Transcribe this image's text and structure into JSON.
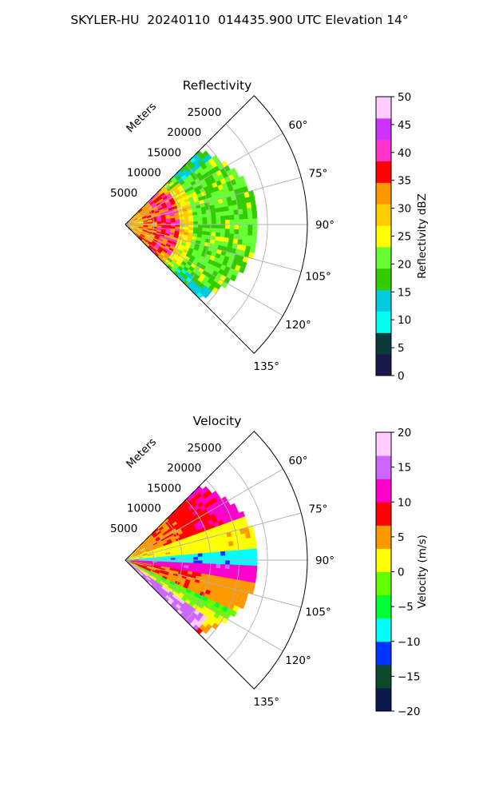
{
  "figure_title": "SKYLER-HU  20240110  014435.900 UTC Elevation 14°",
  "chart_data": [
    {
      "type": "heatmap",
      "title": "Reflectivity",
      "radial_axis_label": "Meters",
      "radial_ticks": [
        5000,
        10000,
        15000,
        20000,
        25000
      ],
      "radial_tick_labels": [
        "5000",
        "10000",
        "15000",
        "20000",
        "25000"
      ],
      "azimuth_ticks": [
        60,
        75,
        90,
        105,
        120,
        135
      ],
      "azimuth_tick_labels": [
        "60°",
        "75°",
        "90°",
        "105°",
        "120°",
        "135°"
      ],
      "azimuth_range": [
        45,
        135
      ],
      "radial_range": [
        0,
        32000
      ],
      "data_extent_m": 24000,
      "colorbar": {
        "label": "Reflectivity dBZ",
        "range": [
          0,
          50
        ],
        "ticks": [
          0,
          5,
          10,
          15,
          20,
          25,
          30,
          35,
          40,
          45,
          50
        ],
        "tick_labels": [
          "0",
          "5",
          "10",
          "15",
          "20",
          "25",
          "30",
          "35",
          "40",
          "45",
          "50"
        ],
        "colors": [
          "#1a1a4a",
          "#0a3a3a",
          "#00ffee",
          "#00ccdd",
          "#33cc00",
          "#66ff33",
          "#ffff00",
          "#ffcc00",
          "#ff9900",
          "#ff0000",
          "#ff33cc",
          "#cc33ff",
          "#ffccff"
        ]
      },
      "grid": true
    },
    {
      "type": "heatmap",
      "title": "Velocity",
      "radial_axis_label": "Meters",
      "radial_ticks": [
        5000,
        10000,
        15000,
        20000,
        25000
      ],
      "radial_tick_labels": [
        "5000",
        "10000",
        "15000",
        "20000",
        "25000"
      ],
      "azimuth_ticks": [
        60,
        75,
        90,
        105,
        120,
        135
      ],
      "azimuth_tick_labels": [
        "60°",
        "75°",
        "90°",
        "105°",
        "120°",
        "135°"
      ],
      "azimuth_range": [
        45,
        135
      ],
      "radial_range": [
        0,
        32000
      ],
      "data_extent_m": 24000,
      "colorbar": {
        "label": "Velocity (m/s)",
        "range": [
          -20,
          20
        ],
        "ticks": [
          -20,
          -15,
          -10,
          -5,
          0,
          5,
          10,
          15,
          20
        ],
        "tick_labels": [
          "−20",
          "−15",
          "−10",
          "−5",
          "0",
          "5",
          "10",
          "15",
          "20"
        ],
        "colors": [
          "#0a1a4a",
          "#0a4a2a",
          "#0033ff",
          "#00ffff",
          "#00ff33",
          "#66ff00",
          "#ffff00",
          "#ff9900",
          "#ff0000",
          "#ff00cc",
          "#cc66ff",
          "#ffccff"
        ]
      },
      "grid": true
    }
  ]
}
